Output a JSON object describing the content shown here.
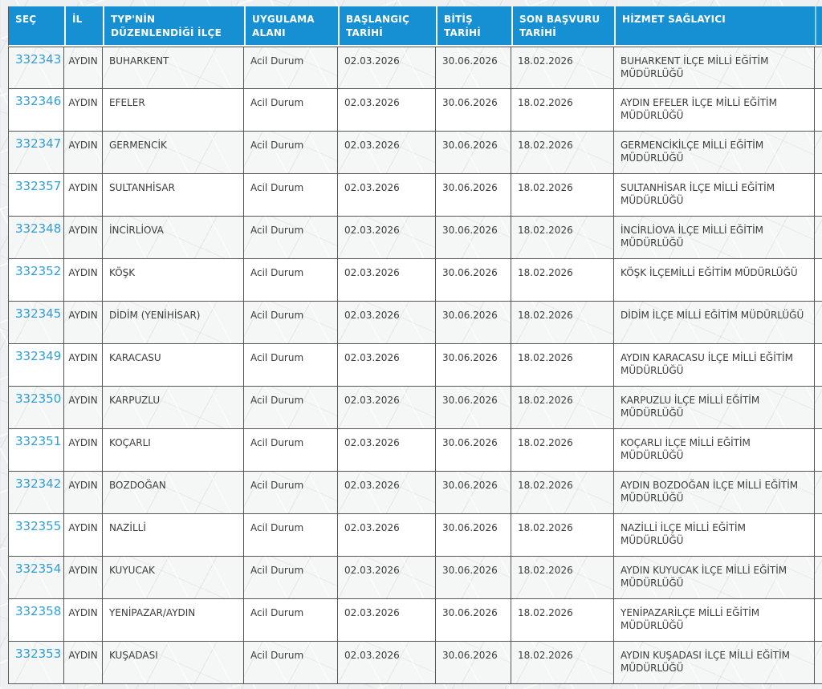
{
  "colors": {
    "header_bg": "#1690d2",
    "link": "#2f9fd6",
    "row_text": "#3c3c3c",
    "grid_border": "#565656"
  },
  "table": {
    "columns": [
      {
        "key": "sec",
        "label": "SEÇ"
      },
      {
        "key": "il",
        "label": "İL"
      },
      {
        "key": "ilce",
        "label": "TYP'NİN DÜZENLENDİĞİ İLÇE"
      },
      {
        "key": "alan",
        "label": "UYGULAMA ALANI"
      },
      {
        "key": "baslangic",
        "label": "BAŞLANGIÇ TARİHİ"
      },
      {
        "key": "bitis",
        "label": "BİTİŞ TARİHİ"
      },
      {
        "key": "son_basvuru",
        "label": "SON BAŞVURU TARİHİ"
      },
      {
        "key": "hizmet",
        "label": "HİZMET SAĞLAYICI"
      }
    ],
    "rows": [
      {
        "sec": "332343",
        "il": "AYDIN",
        "ilce": "BUHARKENT",
        "alan": "Acil Durum",
        "baslangic": "02.03.2026",
        "bitis": "30.06.2026",
        "son_basvuru": "18.02.2026",
        "hizmet": "BUHARKENT İLÇE MİLLİ EĞİTİM MÜDÜRLÜĞÜ"
      },
      {
        "sec": "332346",
        "il": "AYDIN",
        "ilce": "EFELER",
        "alan": "Acil Durum",
        "baslangic": "02.03.2026",
        "bitis": "30.06.2026",
        "son_basvuru": "18.02.2026",
        "hizmet": "AYDIN EFELER İLÇE MİLLİ EĞİTİM MÜDÜRLÜĞÜ"
      },
      {
        "sec": "332347",
        "il": "AYDIN",
        "ilce": "GERMENCİK",
        "alan": "Acil Durum",
        "baslangic": "02.03.2026",
        "bitis": "30.06.2026",
        "son_basvuru": "18.02.2026",
        "hizmet": "GERMENCİKİLÇE MİLLİ EĞİTİM MÜDÜRLÜĞÜ"
      },
      {
        "sec": "332357",
        "il": "AYDIN",
        "ilce": "SULTANHİSAR",
        "alan": "Acil Durum",
        "baslangic": "02.03.2026",
        "bitis": "30.06.2026",
        "son_basvuru": "18.02.2026",
        "hizmet": "SULTANHİSAR İLÇE MİLLİ EĞİTİM MÜDÜRLÜĞÜ"
      },
      {
        "sec": "332348",
        "il": "AYDIN",
        "ilce": "İNCİRLİOVA",
        "alan": "Acil Durum",
        "baslangic": "02.03.2026",
        "bitis": "30.06.2026",
        "son_basvuru": "18.02.2026",
        "hizmet": "İNCİRLİOVA İLÇE MİLLİ EĞİTİM MÜDÜRLÜĞÜ"
      },
      {
        "sec": "332352",
        "il": "AYDIN",
        "ilce": "KÖŞK",
        "alan": "Acil Durum",
        "baslangic": "02.03.2026",
        "bitis": "30.06.2026",
        "son_basvuru": "18.02.2026",
        "hizmet": "KÖŞK İLÇEMİLLİ EĞİTİM MÜDÜRLÜĞÜ"
      },
      {
        "sec": "332345",
        "il": "AYDIN",
        "ilce": "DİDİM (YENİHİSAR)",
        "alan": "Acil Durum",
        "baslangic": "02.03.2026",
        "bitis": "30.06.2026",
        "son_basvuru": "18.02.2026",
        "hizmet": "DİDİM İLÇE MİLLİ EĞİTİM MÜDÜRLÜĞÜ"
      },
      {
        "sec": "332349",
        "il": "AYDIN",
        "ilce": "KARACASU",
        "alan": "Acil Durum",
        "baslangic": "02.03.2026",
        "bitis": "30.06.2026",
        "son_basvuru": "18.02.2026",
        "hizmet": "AYDIN KARACASU İLÇE MİLLİ EĞİTİM MÜDÜRLÜĞÜ"
      },
      {
        "sec": "332350",
        "il": "AYDIN",
        "ilce": "KARPUZLU",
        "alan": "Acil Durum",
        "baslangic": "02.03.2026",
        "bitis": "30.06.2026",
        "son_basvuru": "18.02.2026",
        "hizmet": "KARPUZLU İLÇE MİLLİ EĞİTİM MÜDÜRLÜĞÜ"
      },
      {
        "sec": "332351",
        "il": "AYDIN",
        "ilce": "KOÇARLI",
        "alan": "Acil Durum",
        "baslangic": "02.03.2026",
        "bitis": "30.06.2026",
        "son_basvuru": "18.02.2026",
        "hizmet": "KOÇARLI İLÇE MİLLİ EĞİTİM MÜDÜRLÜĞÜ"
      },
      {
        "sec": "332342",
        "il": "AYDIN",
        "ilce": "BOZDOĞAN",
        "alan": "Acil Durum",
        "baslangic": "02.03.2026",
        "bitis": "30.06.2026",
        "son_basvuru": "18.02.2026",
        "hizmet": "AYDIN BOZDOĞAN İLÇE MİLLİ EĞİTİM MÜDÜRLÜĞÜ"
      },
      {
        "sec": "332355",
        "il": "AYDIN",
        "ilce": "NAZİLLİ",
        "alan": "Acil Durum",
        "baslangic": "02.03.2026",
        "bitis": "30.06.2026",
        "son_basvuru": "18.02.2026",
        "hizmet": "NAZİLLİ İLÇE MİLLİ EĞİTİM MÜDÜRLÜĞÜ"
      },
      {
        "sec": "332354",
        "il": "AYDIN",
        "ilce": "KUYUCAK",
        "alan": "Acil Durum",
        "baslangic": "02.03.2026",
        "bitis": "30.06.2026",
        "son_basvuru": "18.02.2026",
        "hizmet": "AYDIN KUYUCAK İLÇE MİLLİ EĞİTİM MÜDÜRLÜĞÜ"
      },
      {
        "sec": "332358",
        "il": "AYDIN",
        "ilce": "YENİPAZAR/AYDIN",
        "alan": "Acil Durum",
        "baslangic": "02.03.2026",
        "bitis": "30.06.2026",
        "son_basvuru": "18.02.2026",
        "hizmet": "YENİPAZARİLÇE MİLLİ EĞİTİM MÜDÜRLÜĞÜ"
      },
      {
        "sec": "332353",
        "il": "AYDIN",
        "ilce": "KUŞADASI",
        "alan": "Acil Durum",
        "baslangic": "02.03.2026",
        "bitis": "30.06.2026",
        "son_basvuru": "18.02.2026",
        "hizmet": "AYDIN KUŞADASI İLÇE MİLLİ EĞİTİM MÜDÜRLÜĞÜ"
      }
    ]
  }
}
